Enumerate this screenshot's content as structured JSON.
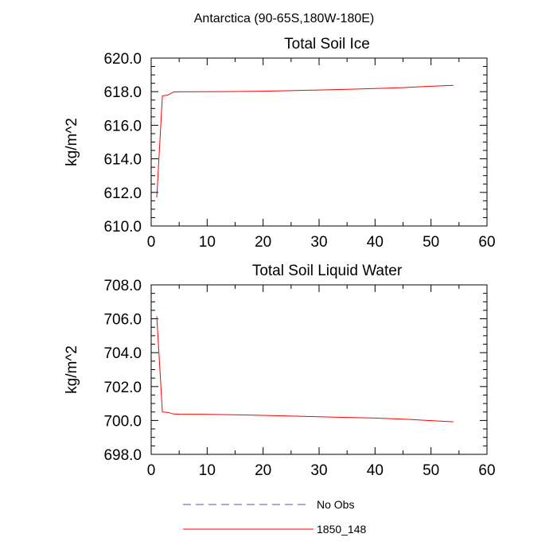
{
  "page_title": "Antarctica (90-65S,180W-180E)",
  "legend": {
    "items": [
      {
        "label": "No Obs",
        "color": "#5555aa",
        "dashed": true
      },
      {
        "label": "1850_148",
        "color": "#ff0000",
        "dashed": false
      }
    ]
  },
  "chart_data": [
    {
      "type": "line",
      "title": "Total Soil Ice",
      "xlabel": "",
      "ylabel": "kg/m^2",
      "xlim": [
        0,
        60
      ],
      "ylim": [
        610,
        620
      ],
      "x_ticks": [
        "0",
        "10",
        "20",
        "30",
        "40",
        "50",
        "60"
      ],
      "y_ticks": [
        "610.0",
        "612.0",
        "614.0",
        "616.0",
        "618.0",
        "620.0"
      ],
      "series": [
        {
          "name": "1850_148",
          "color": "#ff0000",
          "x": [
            1,
            2,
            3,
            4,
            5,
            10,
            15,
            20,
            25,
            30,
            35,
            40,
            45,
            50,
            54
          ],
          "y": [
            611.7,
            617.75,
            617.8,
            617.98,
            617.99,
            618.0,
            618.01,
            618.03,
            618.06,
            618.1,
            618.14,
            618.19,
            618.24,
            618.32,
            618.38
          ]
        }
      ]
    },
    {
      "type": "line",
      "title": "Total Soil Liquid Water",
      "xlabel": "",
      "ylabel": "kg/m^2",
      "xlim": [
        0,
        60
      ],
      "ylim": [
        698,
        708
      ],
      "x_ticks": [
        "0",
        "10",
        "20",
        "30",
        "40",
        "50",
        "60"
      ],
      "y_ticks": [
        "698.0",
        "700.0",
        "702.0",
        "704.0",
        "706.0",
        "708.0"
      ],
      "series": [
        {
          "name": "1850_148",
          "color": "#ff0000",
          "x": [
            1,
            2,
            3,
            4,
            5,
            10,
            15,
            20,
            25,
            30,
            35,
            40,
            45,
            50,
            54
          ],
          "y": [
            706.15,
            700.5,
            700.48,
            700.38,
            700.37,
            700.36,
            700.34,
            700.3,
            700.26,
            700.22,
            700.18,
            700.14,
            700.08,
            699.99,
            699.92
          ]
        }
      ]
    }
  ]
}
